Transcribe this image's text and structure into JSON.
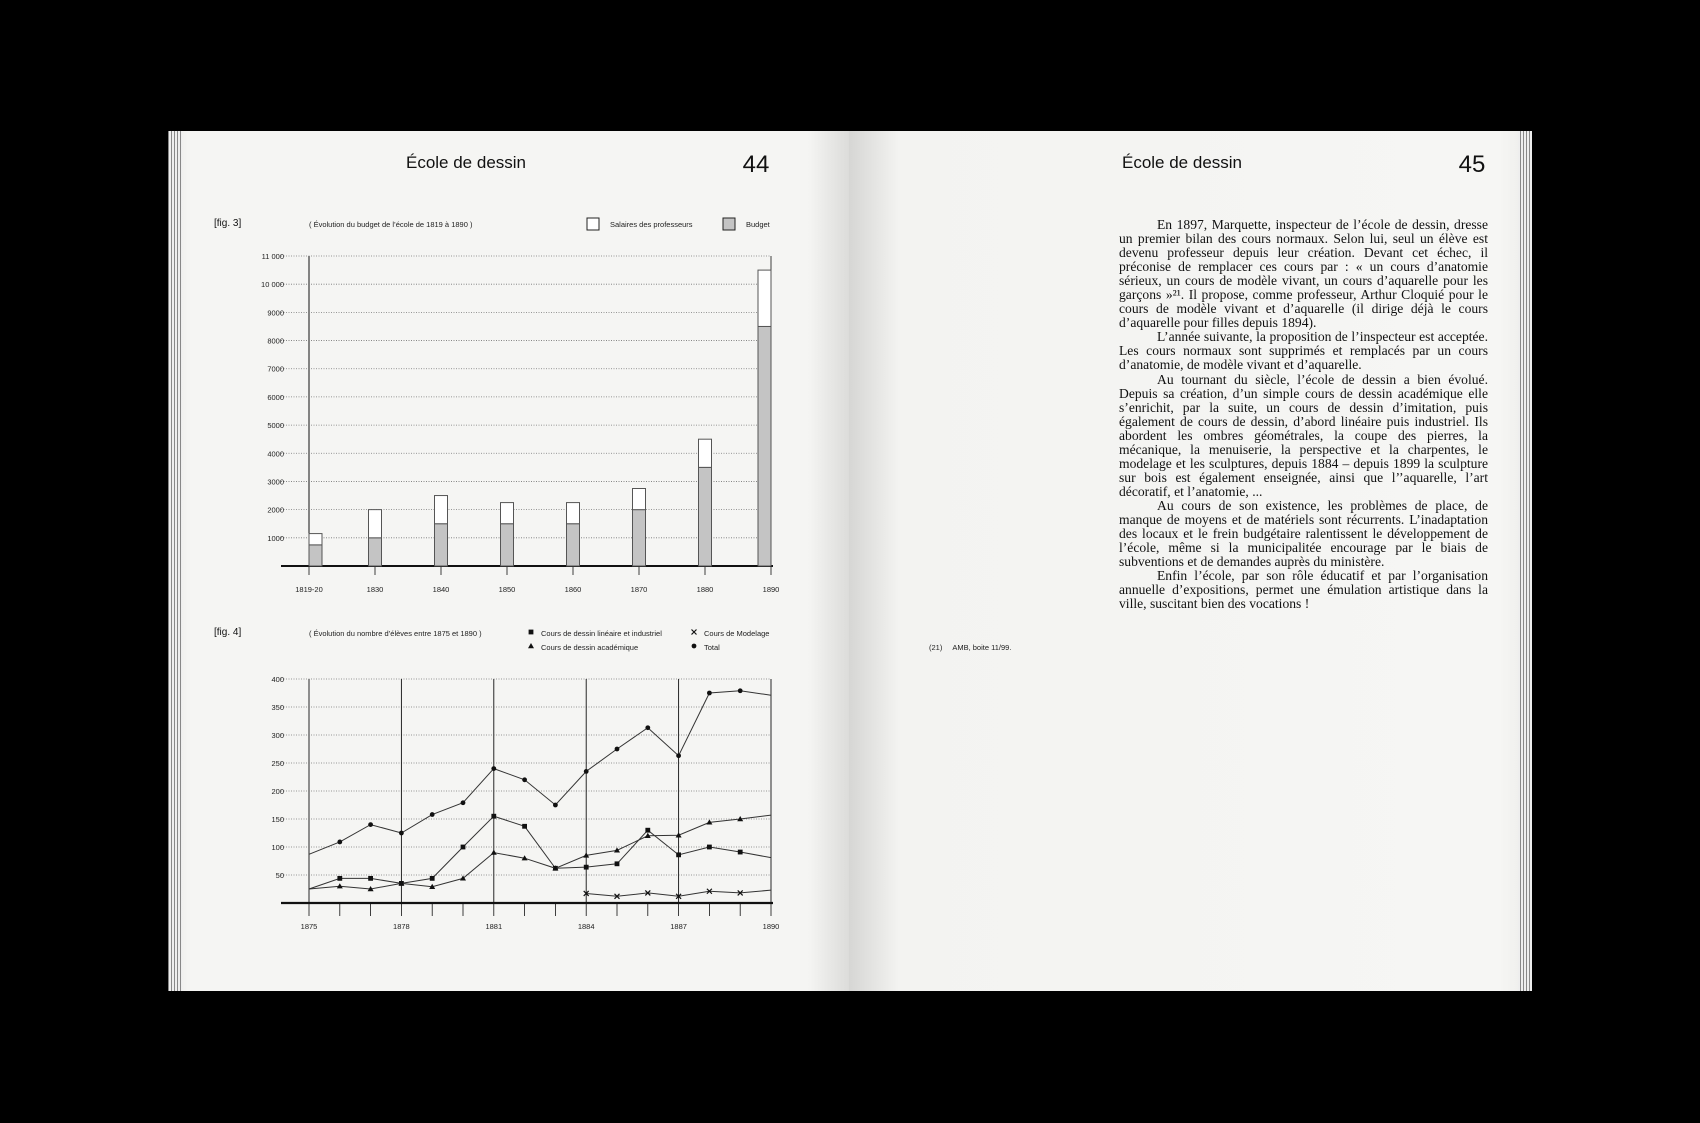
{
  "left_page": {
    "header_title": "École de dessin",
    "page_number": "44",
    "fig3_label": "[fig. 3]",
    "fig4_label": "[fig. 4]"
  },
  "right_page": {
    "header_title": "École de dessin",
    "page_number": "45",
    "paragraphs": [
      "En 1897, Marquette, inspecteur de l’école de dessin, dresse un premier bilan des cours normaux. Selon lui, seul un élève est devenu professeur depuis leur création. Devant cet échec, il préconise de remplacer ces cours par : « un cours d’anatomie sérieux, un cours de modèle vivant, un cours d’aquarelle pour les garçons »²¹. Il propose, comme professeur, Arthur Cloquié pour le cours de modèle vivant et d’aquarelle (il dirige déjà le cours d’aquarelle pour filles depuis 1894).",
      "L’année suivante, la proposition de l’inspecteur est acceptée. Les cours normaux sont supprimés et remplacés par un cours d’anatomie, de modèle vivant et d’aquarelle.",
      "Au tournant du siècle, l’école de dessin a bien évolué. Depuis sa création, d’un simple cours de dessin académique elle s’enrichit, par la suite, un cours de dessin d’imitation, puis également de cours de dessin, d’abord linéaire puis industriel. Ils abordent les ombres géométrales, la coupe des pierres, la mécanique, la menuiserie, la perspective et la charpentes, le modelage et les sculptures, depuis 1884 – depuis 1899 la sculpture sur bois est également enseignée, ainsi que l’’aquarelle, l’art décoratif, et l’anatomie, ...",
      "Au cours de son existence, les problèmes de place, de manque de moyens et de matériels sont récurrents. L’inadaptation des locaux et le frein budgétaire ralentissent le développement de l’école, même si la municipalitée encourage par le biais de subventions et de demandes auprès du ministère.",
      "Enfin l’école, par son rôle éducatif et par l’organisation annuelle d’expositions, permet une émulation artistique dans la ville, suscitant bien des vocations !"
    ],
    "footnote": {
      "number": "(21)",
      "text": "AMB, boite 11/99."
    }
  },
  "chart_data": [
    {
      "type": "bar",
      "stacked": true,
      "title": "( Évolution du budget de l’école de 1819 à 1890 )",
      "categories": [
        "1819-20",
        "1830",
        "1840",
        "1850",
        "1860",
        "1870",
        "1880",
        "1890"
      ],
      "series": [
        {
          "name": "Budget",
          "color": "#c4c4c4",
          "values": [
            750,
            1000,
            1500,
            1500,
            1500,
            2000,
            3500,
            8500
          ]
        },
        {
          "name": "Salaires des professeurs",
          "color": "#ffffff",
          "values": [
            400,
            1000,
            1000,
            750,
            750,
            750,
            1000,
            2000
          ]
        }
      ],
      "yticks": [
        "1000",
        "2000",
        "3000",
        "4000",
        "5000",
        "6000",
        "7000",
        "8000",
        "9000",
        "10 000",
        "11 000"
      ],
      "ylim": [
        0,
        11000
      ],
      "grid": "horizontal dotted",
      "legend": "top-right"
    },
    {
      "type": "line",
      "title": "( Évolution du nombre d’élèves entre 1875 et 1890 )",
      "x": [
        1875,
        1876,
        1877,
        1878,
        1879,
        1880,
        1881,
        1882,
        1883,
        1884,
        1885,
        1886,
        1887,
        1888,
        1889,
        1890
      ],
      "xticklabels": [
        "1875",
        "1878",
        "1881",
        "1884",
        "1887",
        "1890"
      ],
      "series": [
        {
          "name": "Cours de dessin linéaire et industriel",
          "marker": "square",
          "values": [
            25,
            44,
            44,
            35,
            44,
            100,
            155,
            137,
            62,
            64,
            70,
            130,
            86,
            100,
            91,
            81
          ]
        },
        {
          "name": "Cours de Modelage",
          "marker": "x",
          "values": [
            null,
            null,
            null,
            null,
            null,
            null,
            null,
            null,
            null,
            17,
            12,
            18,
            12,
            21,
            18,
            23
          ]
        },
        {
          "name": "Cours de dessin académique",
          "marker": "triangle",
          "values": [
            25,
            30,
            25,
            35,
            29,
            44,
            90,
            80,
            62,
            85,
            94,
            120,
            121,
            144,
            150,
            157
          ]
        },
        {
          "name": "Total",
          "marker": "circle",
          "values": [
            87,
            109,
            140,
            125,
            158,
            179,
            240,
            220,
            175,
            235,
            275,
            313,
            263,
            375,
            379,
            371
          ]
        }
      ],
      "yticks": [
        "50",
        "100",
        "150",
        "200",
        "250",
        "300",
        "350",
        "400"
      ],
      "ylim": [
        0,
        400
      ],
      "grid": "horizontal dotted",
      "legend": "top-right"
    }
  ]
}
